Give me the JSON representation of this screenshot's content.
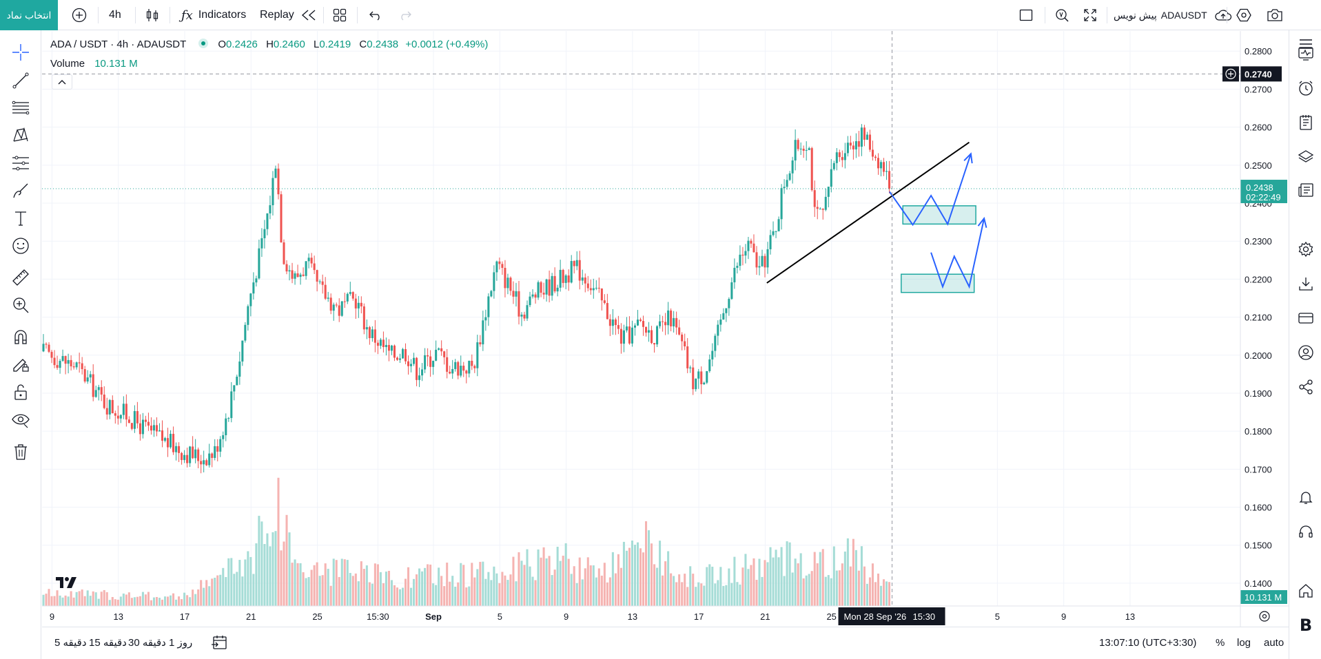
{
  "topbar": {
    "symbol_button": "انتخاب نماد",
    "interval": "4h",
    "indicators_label": "Indicators",
    "replay_label": "Replay",
    "symbol_preview": "ADAUSDT",
    "preview_label": "پیش نویس"
  },
  "legend": {
    "title": "ADA / USDT · 4h · ADAUSDT",
    "o_label": "O",
    "o": "0.2426",
    "h_label": "H",
    "h": "0.2460",
    "l_label": "L",
    "l": "0.2419",
    "c_label": "C",
    "c": "0.2438",
    "change": "+0.0012 (+0.49%)",
    "volume_label": "Volume",
    "volume_value": "10.131 M"
  },
  "price_axis": {
    "crosshair_price": "0.2740",
    "last_price": "0.2438",
    "countdown": "02:22:49",
    "volume_tag": "10.131 M"
  },
  "time_axis": {
    "crosshair_label": "Mon 28 Sep '26",
    "crosshair_time": "15:30"
  },
  "bottombar": {
    "ranges": [
      "5 دقیقه",
      "15 دقیقه",
      "30 دقیقه",
      "1 روز"
    ],
    "clock": "13:07:10 (UTC+3:30)",
    "percent": "%",
    "log": "log",
    "auto": "auto"
  },
  "colors": {
    "up": "#26a69a",
    "down": "#ef5350",
    "accent": "#1fa8a0",
    "drawing": "#2962ff",
    "zone": "#1fa8a0"
  },
  "chart_data": {
    "type": "candlestick",
    "symbol": "ADA / USDT",
    "interval": "4h",
    "y_ticks": [
      0.28,
      0.27,
      0.26,
      0.25,
      0.24,
      0.23,
      0.22,
      0.21,
      0.2,
      0.19,
      0.18,
      0.17,
      0.16,
      0.15,
      0.14
    ],
    "ylim": [
      0.134,
      0.2853
    ],
    "x_ticks": [
      "9",
      "13",
      "17",
      "21",
      "25",
      "15:30",
      "Sep",
      "5",
      "9",
      "13",
      "17",
      "21",
      "25",
      "5",
      "9",
      "13"
    ],
    "x_tick_days": [
      9,
      13,
      17,
      21,
      25,
      28.65,
      32,
      36,
      40,
      44,
      48,
      52,
      56,
      66,
      70,
      74
    ],
    "xlim": [
      8.4,
      80.65
    ],
    "last_bar_day": 59.5,
    "crosshair_day": 59.65,
    "crosshair_price": 0.274,
    "price_path": [
      [
        8.4,
        0.201
      ],
      [
        10.5,
        0.197
      ],
      [
        12.3,
        0.187
      ],
      [
        13.4,
        0.1845
      ],
      [
        14.5,
        0.181
      ],
      [
        16,
        0.177
      ],
      [
        17,
        0.1745
      ],
      [
        18,
        0.173
      ],
      [
        18.8,
        0.1745
      ],
      [
        19.6,
        0.185
      ],
      [
        20.3,
        0.199
      ],
      [
        20.9,
        0.215
      ],
      [
        21.6,
        0.228
      ],
      [
        22.2,
        0.242
      ],
      [
        22.5,
        0.252
      ],
      [
        22.9,
        0.227
      ],
      [
        23.6,
        0.22
      ],
      [
        24.4,
        0.224
      ],
      [
        25,
        0.218
      ],
      [
        26.3,
        0.212
      ],
      [
        27.3,
        0.215
      ],
      [
        28,
        0.207
      ],
      [
        29.4,
        0.2
      ],
      [
        30.3,
        0.201
      ],
      [
        31,
        0.196
      ],
      [
        32.2,
        0.201
      ],
      [
        33,
        0.197
      ],
      [
        34.4,
        0.197
      ],
      [
        35.3,
        0.215
      ],
      [
        35.8,
        0.224
      ],
      [
        36.6,
        0.218
      ],
      [
        37.3,
        0.211
      ],
      [
        38.1,
        0.216
      ],
      [
        39.6,
        0.22
      ],
      [
        40.6,
        0.223
      ],
      [
        41.3,
        0.22
      ],
      [
        42,
        0.215
      ],
      [
        43.4,
        0.204
      ],
      [
        44.5,
        0.208
      ],
      [
        45.4,
        0.205
      ],
      [
        46.3,
        0.21
      ],
      [
        47.1,
        0.201
      ],
      [
        47.6,
        0.193
      ],
      [
        48.3,
        0.195
      ],
      [
        49,
        0.203
      ],
      [
        49.8,
        0.217
      ],
      [
        50.4,
        0.225
      ],
      [
        51,
        0.229
      ],
      [
        51.7,
        0.222
      ],
      [
        52.6,
        0.233
      ],
      [
        53.1,
        0.245
      ],
      [
        53.9,
        0.255
      ],
      [
        54.6,
        0.257
      ],
      [
        55,
        0.236
      ],
      [
        55.6,
        0.238
      ],
      [
        56.2,
        0.252
      ],
      [
        57.1,
        0.256
      ],
      [
        57.9,
        0.258
      ],
      [
        58.6,
        0.253
      ],
      [
        59.2,
        0.249
      ],
      [
        59.5,
        0.2438
      ]
    ],
    "volume_path": [
      [
        8.4,
        0.2
      ],
      [
        17,
        0.15
      ],
      [
        19.8,
        0.6
      ],
      [
        21.3,
        0.9
      ],
      [
        22.4,
        1.7
      ],
      [
        24,
        0.6
      ],
      [
        30,
        0.45
      ],
      [
        36,
        0.55
      ],
      [
        40,
        0.75
      ],
      [
        42,
        0.45
      ],
      [
        45,
        1.0
      ],
      [
        47.5,
        0.45
      ],
      [
        51,
        0.6
      ],
      [
        53.5,
        0.8
      ],
      [
        56,
        0.7
      ],
      [
        57,
        0.8
      ],
      [
        59.5,
        0.45
      ]
    ],
    "volume_max_bar_m": 10.131,
    "drawings": {
      "trendline": [
        [
          52.1,
          0.219
        ],
        [
          64.3,
          0.256
        ]
      ],
      "zone_upper": {
        "x": [
          60.3,
          64.7
        ],
        "y": [
          0.2345,
          0.2393
        ]
      },
      "zone_lower": {
        "x": [
          60.2,
          64.6
        ],
        "y": [
          0.2165,
          0.2213
        ]
      },
      "path_upper": [
        [
          59.5,
          0.243
        ],
        [
          60.9,
          0.2343
        ],
        [
          62,
          0.242
        ],
        [
          63,
          0.2345
        ],
        [
          64.4,
          0.253
        ]
      ],
      "path_lower": [
        [
          62,
          0.227
        ],
        [
          62.7,
          0.218
        ],
        [
          63.4,
          0.226
        ],
        [
          64.3,
          0.218
        ],
        [
          65.2,
          0.236
        ]
      ]
    }
  }
}
